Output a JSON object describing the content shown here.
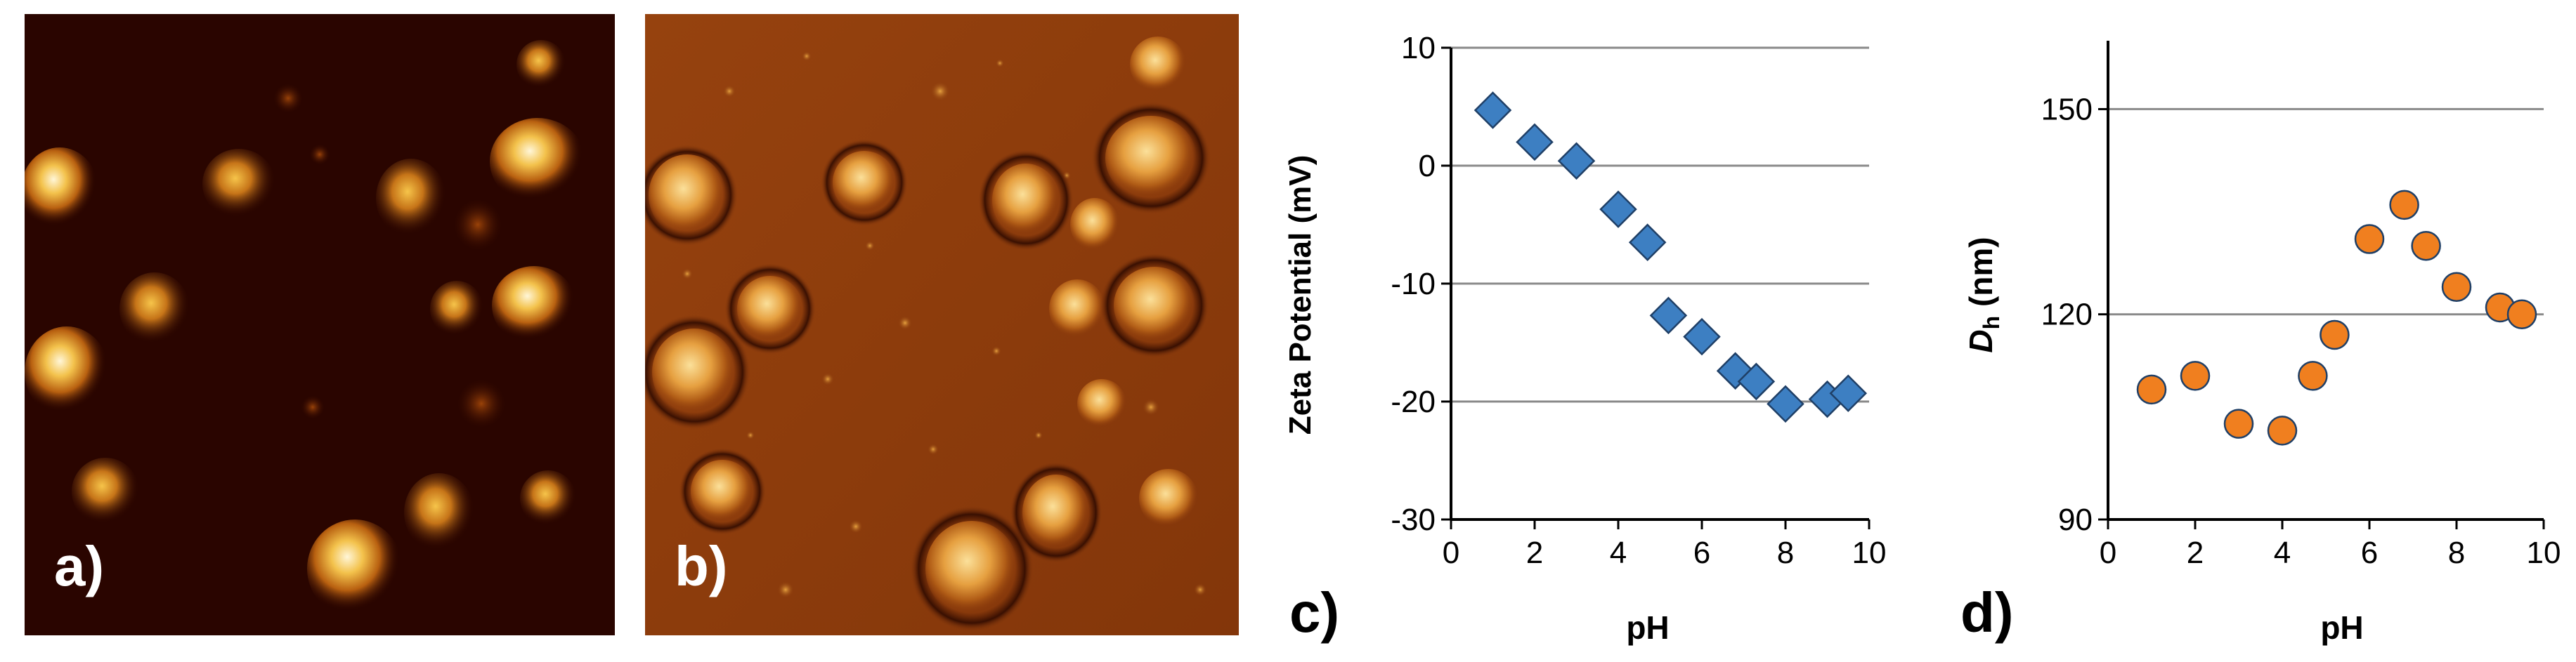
{
  "panels": {
    "a": {
      "label": "a)"
    },
    "b": {
      "label": "b)"
    }
  },
  "colors": {
    "afm_a_background": "#2a0500",
    "afm_a_particle": "#f2c24a",
    "afm_b_background": "#8a3a0c",
    "afm_b_particle": "#efb04a",
    "series_zeta": "#3d7fc2",
    "series_dh": "#f07f1f",
    "marker_edge": "#1f3f66",
    "gridline": "#8a8a8a",
    "axis": "#000000"
  },
  "chart_data": [
    {
      "panel": "c",
      "panel_label": "c)",
      "type": "scatter",
      "marker": "diamond",
      "xlabel": "pH",
      "ylabel": "Zeta Potential (mV)",
      "xlim": [
        0,
        10
      ],
      "ylim": [
        -30,
        10
      ],
      "xticks": [
        "0",
        "2",
        "4",
        "6",
        "8",
        "10"
      ],
      "yticks": [
        "10",
        "0",
        "-10",
        "-20",
        "-30"
      ],
      "grid": "horizontal",
      "x": [
        1.0,
        2.0,
        3.0,
        4.0,
        4.7,
        5.2,
        6.0,
        6.8,
        7.3,
        8.0,
        9.0,
        9.5
      ],
      "y": [
        4.7,
        2.0,
        0.4,
        -3.7,
        -6.5,
        -12.7,
        -14.5,
        -17.4,
        -18.3,
        -20.2,
        -19.8,
        -19.3
      ]
    },
    {
      "panel": "d",
      "panel_label": "d)",
      "type": "scatter",
      "marker": "circle",
      "xlabel": "pH",
      "ylabel": "D",
      "ylabel_subscript": "h",
      "ylabel_unit": "(nm)",
      "xlim": [
        0,
        10
      ],
      "ylim": [
        90,
        160
      ],
      "xticks": [
        "0",
        "2",
        "4",
        "6",
        "8",
        "10"
      ],
      "yticks": [
        "150",
        "120",
        "90"
      ],
      "ytick_values": [
        150,
        120,
        90
      ],
      "grid": "horizontal",
      "x": [
        1.0,
        2.0,
        3.0,
        4.0,
        4.7,
        5.2,
        6.0,
        6.8,
        7.3,
        8.0,
        9.0,
        9.5
      ],
      "y": [
        109,
        111,
        104,
        103,
        111,
        117,
        131,
        136,
        130,
        124,
        121,
        120
      ]
    }
  ]
}
